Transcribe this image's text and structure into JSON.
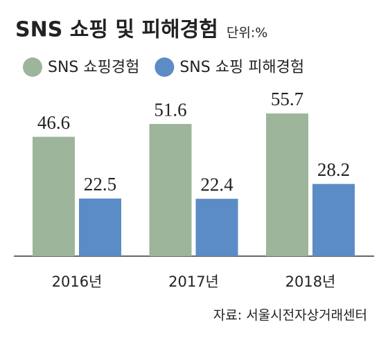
{
  "chart_data": {
    "type": "bar",
    "title": "SNS 쇼핑 및 피해경험",
    "unit": "단위:%",
    "categories": [
      "2016년",
      "2017년",
      "2018년"
    ],
    "series": [
      {
        "name": "SNS 쇼핑경험",
        "color": "#9db59a",
        "values": [
          46.6,
          51.6,
          55.7
        ]
      },
      {
        "name": "SNS 쇼핑 피해경험",
        "color": "#5b8cc6",
        "values": [
          22.5,
          22.4,
          28.2
        ]
      }
    ],
    "source": "자료: 서울시전자상거래센터"
  }
}
